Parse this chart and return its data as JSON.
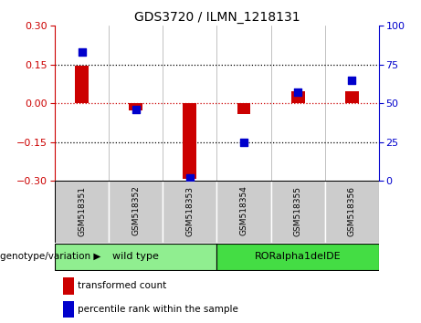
{
  "title": "GDS3720 / ILMN_1218131",
  "samples": [
    "GSM518351",
    "GSM518352",
    "GSM518353",
    "GSM518354",
    "GSM518355",
    "GSM518356"
  ],
  "red_values": [
    0.145,
    -0.028,
    -0.292,
    -0.042,
    0.048,
    0.048
  ],
  "blue_values": [
    83,
    46,
    2,
    25,
    57,
    65
  ],
  "ylim_left": [
    -0.3,
    0.3
  ],
  "ylim_right": [
    0,
    100
  ],
  "yticks_left": [
    -0.3,
    -0.15,
    0,
    0.15,
    0.3
  ],
  "yticks_right": [
    0,
    25,
    50,
    75,
    100
  ],
  "group1_label": "wild type",
  "group1_indices": [
    0,
    1,
    2
  ],
  "group1_color": "#90EE90",
  "group2_label": "RORalpha1delDE",
  "group2_indices": [
    3,
    4,
    5
  ],
  "group2_color": "#44DD44",
  "bar_color": "#CC0000",
  "dot_color": "#0000CC",
  "zero_line_color": "#CC0000",
  "dotted_line_color": "#000000",
  "legend_red": "transformed count",
  "legend_blue": "percentile rank within the sample",
  "genotype_label": "genotype/variation",
  "background_color": "#FFFFFF",
  "plot_bg": "#FFFFFF",
  "label_bg": "#CCCCCC",
  "bar_width": 0.25
}
